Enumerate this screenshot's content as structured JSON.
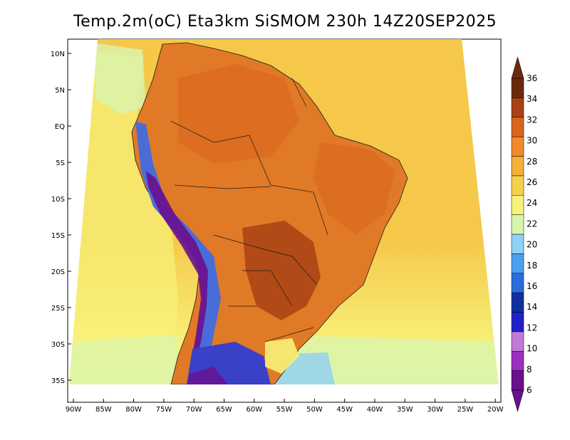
{
  "title": "Temp.2m(oC) Eta3km SiSMOM 230h 14Z20SEP2025",
  "lat_labels": [
    "10N",
    "5N",
    "EQ",
    "5S",
    "10S",
    "15S",
    "20S",
    "25S",
    "30S",
    "35S"
  ],
  "lon_labels": [
    "90W",
    "85W",
    "80W",
    "75W",
    "70W",
    "65W",
    "60W",
    "55W",
    "50W",
    "45W",
    "40W",
    "35W",
    "30W",
    "25W",
    "20W"
  ],
  "colorbar": {
    "levels": [
      "6",
      "8",
      "10",
      "12",
      "14",
      "16",
      "18",
      "20",
      "22",
      "24",
      "26",
      "28",
      "30",
      "32",
      "34",
      "36"
    ],
    "colors": [
      "#6a0f8e",
      "#9a2fc0",
      "#c07ad8",
      "#2020c8",
      "#1030a0",
      "#2a6cdc",
      "#4aa0f0",
      "#8fd0f5",
      "#d8f5b0",
      "#f8f27a",
      "#f7d04a",
      "#f5b03a",
      "#f08a2c",
      "#d8641e",
      "#a84214",
      "#6b2a0c"
    ]
  },
  "colors": {
    "ocean_warm": "#f5c84a",
    "ocean_cool": "#f8f27a",
    "land_hot": "#e07a26",
    "land_very_hot": "#8a3a12",
    "andes_cold": "#5a2aa0",
    "patagonia": "#3a40c8"
  }
}
